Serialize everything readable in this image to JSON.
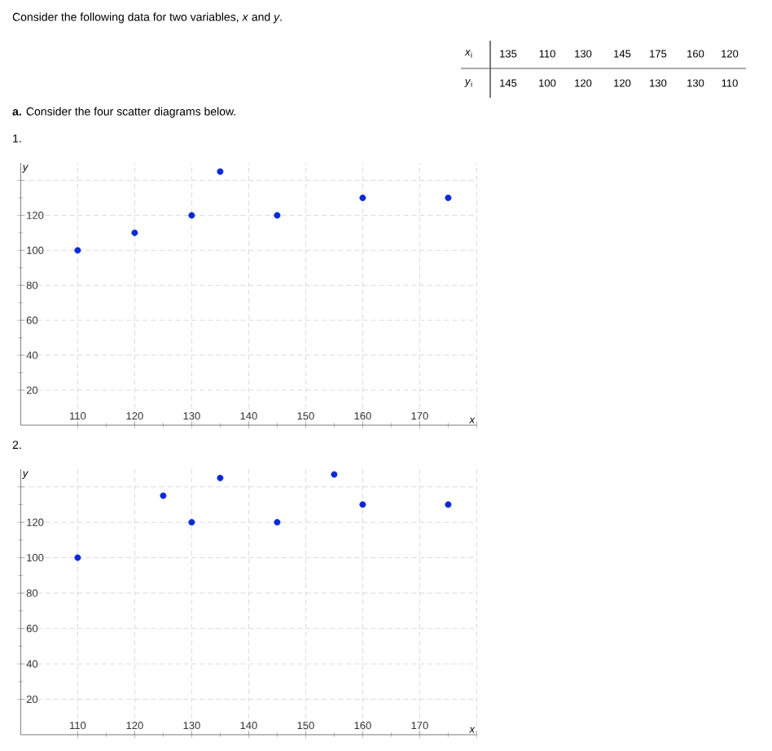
{
  "chart_data": [
    {
      "type": "scatter",
      "title": "1.",
      "xlabel": "x",
      "ylabel": "y",
      "annotations": [
        "Consider the following data for two variables, *x* and *y*.",
        "*x*$_{i}$",
        "135",
        "110",
        "130",
        "145",
        "175",
        "160",
        "120",
        "*y*$_{i}$",
        "145",
        "100",
        "120",
        "120",
        "130",
        "130",
        "110",
        "**a.** Consider the four scatter diagrams below."
      ],
      "x": [
        110,
        120,
        130,
        135,
        145,
        160,
        175
      ],
      "values": [
        100,
        110,
        120,
        145,
        120,
        130,
        130
      ],
      "color": "#0a2ad8",
      "marker": "circle",
      "grid": true,
      "xlim": [
        100,
        180
      ],
      "ylim": [
        0,
        150
      ],
      "xticks": [
        110,
        120,
        130,
        140,
        150,
        160,
        170,
        {
          "value": 180,
          "label": null
        }
      ],
      "yticks": [
        20,
        40,
        60,
        80,
        100,
        120,
        {
          "value": 140,
          "label": null
        }
      ]
    },
    {
      "type": "scatter",
      "title": "2.",
      "xlabel": "x",
      "ylabel": "y",
      "x": [
        110,
        125,
        130,
        135,
        145,
        155,
        160,
        175
      ],
      "values": [
        100,
        135,
        120,
        145,
        120,
        147,
        130,
        130
      ],
      "color": "#0a2ad8",
      "marker": "circle",
      "grid": true,
      "xlim": [
        100,
        180
      ],
      "ylim": [
        0,
        150
      ],
      "xticks": [
        110,
        120,
        130,
        140,
        150,
        160,
        170,
        {
          "value": 180,
          "label": null
        }
      ],
      "yticks": [
        20,
        40,
        60,
        80,
        100,
        120,
        {
          "value": 140,
          "label": null
        }
      ]
    }
  ]
}
